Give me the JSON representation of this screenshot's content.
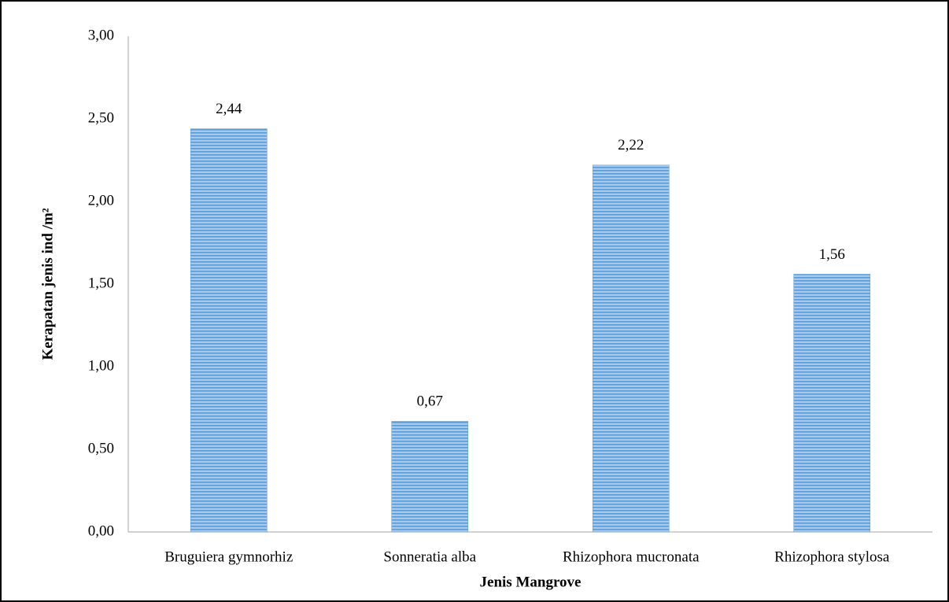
{
  "chart_data": {
    "type": "bar",
    "categories": [
      "Bruguiera gymnorhiz",
      "Sonneratia alba",
      "Rhizophora mucronata",
      "Rhizophora stylosa"
    ],
    "values": [
      2.44,
      0.67,
      2.22,
      1.56
    ],
    "value_labels": [
      "2,44",
      "0,67",
      "2,22",
      "1,56"
    ],
    "color": "#5b9bd5",
    "x_label": "Jenis Mangrove",
    "y_label": "Kerapatan jenis ind /m²",
    "ylim": [
      0,
      3
    ],
    "yticks": [
      {
        "value": 0,
        "label": "0,00"
      },
      {
        "value": 0.5,
        "label": "0,50"
      },
      {
        "value": 1,
        "label": "1,00"
      },
      {
        "value": 1.5,
        "label": "1,50"
      },
      {
        "value": 2,
        "label": "2,00"
      },
      {
        "value": 2.5,
        "label": "2,50"
      },
      {
        "value": 3,
        "label": "3,00"
      }
    ],
    "grid": false
  }
}
